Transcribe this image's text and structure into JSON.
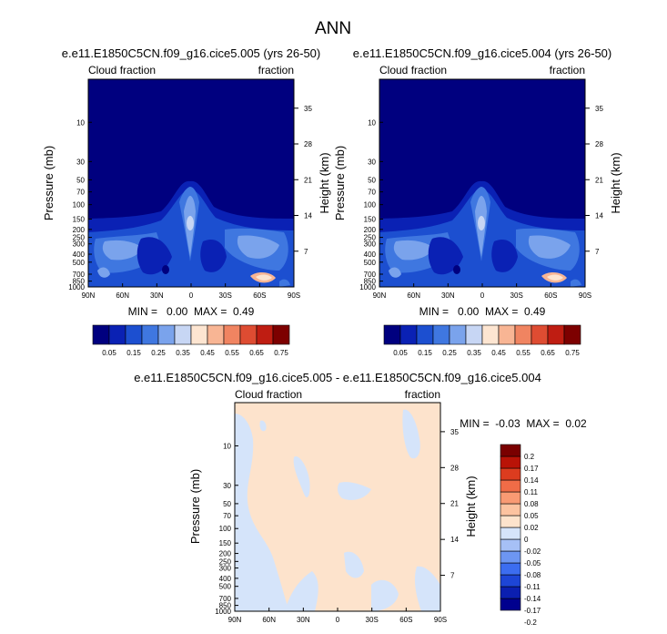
{
  "figure": {
    "title": "ANN"
  },
  "palette": {
    "levels12": [
      "#00007f",
      "#0a21b4",
      "#1c4fd0",
      "#3f77e0",
      "#7aa3ec",
      "#c7d6f4",
      "#fde5d1",
      "#f8b594",
      "#f08461",
      "#de4c32",
      "#bf1d12",
      "#7d0000"
    ],
    "diff_cols": [
      "#00008e",
      "#0b1fb0",
      "#1d45d6",
      "#3c6df0",
      "#6d96f2",
      "#a6c0f6",
      "#d5e4fa",
      "#fde3cc",
      "#fcc3a0",
      "#f99a73",
      "#f06c47",
      "#dc3c1f",
      "#b91307",
      "#7a0000"
    ]
  },
  "panels": [
    {
      "id": "p1",
      "title": "e.e11.E1850C5CN.f09_g16.cice5.005 (yrs 26-50)",
      "left_label": "Cloud fraction",
      "right_label": "fraction",
      "y_axis_label": "Pressure (mb)",
      "y2_axis_label": "Height (km)",
      "stats": "MIN =   0.00  MAX =  0.49"
    },
    {
      "id": "p2",
      "title": "e.e11.E1850C5CN.f09_g16.cice5.004 (yrs 26-50)",
      "left_label": "Cloud fraction",
      "right_label": "fraction",
      "y_axis_label": "Pressure (mb)",
      "y2_axis_label": "Height (km)",
      "stats": "MIN =   0.00  MAX =  0.49"
    },
    {
      "id": "p3",
      "title": "e.e11.E1850C5CN.f09_g16.cice5.005 - e.e11.E1850C5CN.f09_g16.cice5.004",
      "left_label": "Cloud fraction",
      "right_label": "fraction",
      "y_axis_label": "Pressure (mb)",
      "y2_axis_label": "Height (km)",
      "stats": "MIN =  -0.03  MAX =  0.02"
    }
  ],
  "chart_data": [
    {
      "type": "heatmap",
      "title": "e.e11.E1850C5CN.f09_g16.cice5.005 (yrs 26-50)",
      "xlabel": "",
      "ylabel": "Pressure (mb)",
      "y2label": "Height (km)",
      "x_ticks": [
        "90N",
        "60N",
        "30N",
        "0",
        "30S",
        "60S",
        "90S"
      ],
      "x_tick_values": [
        90,
        60,
        30,
        0,
        -30,
        -60,
        -90
      ],
      "y_ticks": [
        "10",
        "30",
        "50",
        "70",
        "100",
        "150",
        "200",
        "250",
        "300",
        "400",
        "500",
        "700",
        "850",
        "1000"
      ],
      "y_tick_values": [
        10,
        30,
        50,
        70,
        100,
        150,
        200,
        250,
        300,
        400,
        500,
        700,
        850,
        1000
      ],
      "y2_ticks": [
        "35",
        "28",
        "21",
        "14",
        "7"
      ],
      "y2_tick_values": [
        35,
        28,
        21,
        14,
        7
      ],
      "colorbar_labels": [
        "0.05",
        "0.15",
        "0.25",
        "0.35",
        "0.45",
        "0.55",
        "0.65",
        "0.75"
      ],
      "contour_levels": [
        0.05,
        0.1,
        0.15,
        0.2,
        0.25,
        0.3,
        0.35,
        0.4,
        0.45,
        0.5,
        0.55,
        0.6,
        0.65,
        0.7,
        0.75
      ],
      "min": 0.0,
      "max": 0.49
    },
    {
      "type": "heatmap",
      "title": "e.e11.E1850C5CN.f09_g16.cice5.004 (yrs 26-50)",
      "xlabel": "",
      "ylabel": "Pressure (mb)",
      "y2label": "Height (km)",
      "x_ticks": [
        "90N",
        "60N",
        "30N",
        "0",
        "30S",
        "60S",
        "90S"
      ],
      "x_tick_values": [
        90,
        60,
        30,
        0,
        -30,
        -60,
        -90
      ],
      "y_ticks": [
        "10",
        "30",
        "50",
        "70",
        "100",
        "150",
        "200",
        "250",
        "300",
        "400",
        "500",
        "700",
        "850",
        "1000"
      ],
      "y_tick_values": [
        10,
        30,
        50,
        70,
        100,
        150,
        200,
        250,
        300,
        400,
        500,
        700,
        850,
        1000
      ],
      "y2_ticks": [
        "35",
        "28",
        "21",
        "14",
        "7"
      ],
      "y2_tick_values": [
        35,
        28,
        21,
        14,
        7
      ],
      "colorbar_labels": [
        "0.05",
        "0.15",
        "0.25",
        "0.35",
        "0.45",
        "0.55",
        "0.65",
        "0.75"
      ],
      "contour_levels": [
        0.05,
        0.1,
        0.15,
        0.2,
        0.25,
        0.3,
        0.35,
        0.4,
        0.45,
        0.5,
        0.55,
        0.6,
        0.65,
        0.7,
        0.75
      ],
      "min": 0.0,
      "max": 0.49
    },
    {
      "type": "heatmap",
      "title": "e.e11.E1850C5CN.f09_g16.cice5.005 - e.e11.E1850C5CN.f09_g16.cice5.004",
      "xlabel": "",
      "ylabel": "Pressure (mb)",
      "y2label": "Height (km)",
      "x_ticks": [
        "90N",
        "60N",
        "30N",
        "0",
        "30S",
        "60S",
        "90S"
      ],
      "x_tick_values": [
        90,
        60,
        30,
        0,
        -30,
        -60,
        -90
      ],
      "y_ticks": [
        "10",
        "30",
        "50",
        "70",
        "100",
        "150",
        "200",
        "250",
        "300",
        "400",
        "500",
        "700",
        "850",
        "1000"
      ],
      "y_tick_values": [
        10,
        30,
        50,
        70,
        100,
        150,
        200,
        250,
        300,
        400,
        500,
        700,
        850,
        1000
      ],
      "y2_ticks": [
        "35",
        "28",
        "21",
        "14",
        "7"
      ],
      "y2_tick_values": [
        35,
        28,
        21,
        14,
        7
      ],
      "colorbar_labels": [
        "0.2",
        "0.17",
        "0.14",
        "0.11",
        "0.08",
        "0.05",
        "0.02",
        "0",
        "-0.02",
        "-0.05",
        "-0.08",
        "-0.11",
        "-0.14",
        "-0.17",
        "-0.2"
      ],
      "min": -0.03,
      "max": 0.02
    }
  ]
}
